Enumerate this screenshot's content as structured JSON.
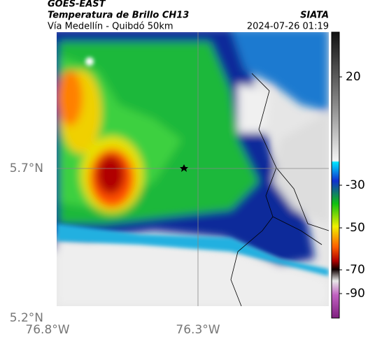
{
  "header": {
    "title": "GOES-EAST",
    "subtitle": "Temperatura de Brillo CH13",
    "caption": "Vía Medellín - Quibdó 50km",
    "source": "SIATA",
    "timestamp": "2024-07-26 01:19"
  },
  "axes": {
    "y_labels": [
      "5.7°N",
      "5.2°N"
    ],
    "x_labels": [
      "76.8°W",
      "76.3°W"
    ]
  },
  "colorbar": {
    "ticks": [
      20,
      -30,
      -50,
      -70,
      -90
    ]
  }
}
